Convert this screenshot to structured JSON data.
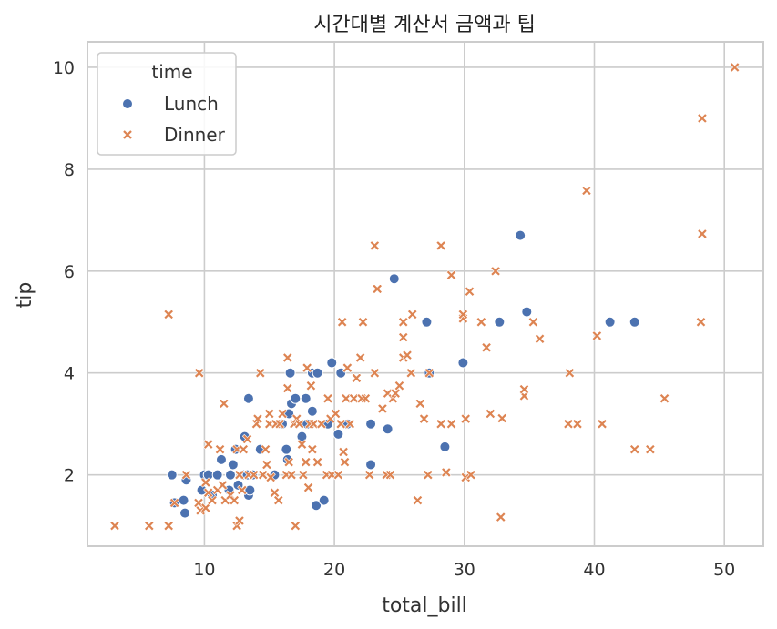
{
  "chart_data": {
    "type": "scatter",
    "title": "시간대별 계산서 금액과 팁",
    "xlabel": "total_bill",
    "ylabel": "tip",
    "xlim": [
      1,
      53
    ],
    "ylim": [
      0.6,
      10.5
    ],
    "xticks": [
      10,
      20,
      30,
      40,
      50
    ],
    "yticks": [
      2,
      4,
      6,
      8,
      10
    ],
    "grid": true,
    "legend": {
      "title": "time",
      "placement": "top-left"
    },
    "colors": {
      "Lunch": "#4c72b0",
      "Dinner": "#dd8452",
      "grid": "#cccccc",
      "axes": "#cccccc"
    },
    "series": [
      {
        "name": "Lunch",
        "marker": "circle",
        "points": [
          [
            7.5,
            2.0
          ],
          [
            7.7,
            1.45
          ],
          [
            8.4,
            1.5
          ],
          [
            8.5,
            1.25
          ],
          [
            8.6,
            1.9
          ],
          [
            9.8,
            1.7
          ],
          [
            10.0,
            2.0
          ],
          [
            10.3,
            2.0
          ],
          [
            10.6,
            1.6
          ],
          [
            11.0,
            2.0
          ],
          [
            11.3,
            2.3
          ],
          [
            11.9,
            1.7
          ],
          [
            12.0,
            2.0
          ],
          [
            12.2,
            2.2
          ],
          [
            12.4,
            2.5
          ],
          [
            12.6,
            1.8
          ],
          [
            13.0,
            2.0
          ],
          [
            13.1,
            2.75
          ],
          [
            13.3,
            2.0
          ],
          [
            13.4,
            3.5
          ],
          [
            13.4,
            1.6
          ],
          [
            13.5,
            1.7
          ],
          [
            13.7,
            2.0
          ],
          [
            14.3,
            2.5
          ],
          [
            15.4,
            2.0
          ],
          [
            16.0,
            3.0
          ],
          [
            16.3,
            2.5
          ],
          [
            16.4,
            2.3
          ],
          [
            16.5,
            3.2
          ],
          [
            16.6,
            4.0
          ],
          [
            16.7,
            3.4
          ],
          [
            17.0,
            3.5
          ],
          [
            17.5,
            2.75
          ],
          [
            17.8,
            3.5
          ],
          [
            17.9,
            3.0
          ],
          [
            18.3,
            4.0
          ],
          [
            18.3,
            3.25
          ],
          [
            18.6,
            1.4
          ],
          [
            18.7,
            4.0
          ],
          [
            19.2,
            1.5
          ],
          [
            19.5,
            3.0
          ],
          [
            19.8,
            4.2
          ],
          [
            20.3,
            2.8
          ],
          [
            20.5,
            4.0
          ],
          [
            20.9,
            3.0
          ],
          [
            21.0,
            3.0
          ],
          [
            22.8,
            3.0
          ],
          [
            22.8,
            2.2
          ],
          [
            24.1,
            2.9
          ],
          [
            24.6,
            5.85
          ],
          [
            27.1,
            5.0
          ],
          [
            27.3,
            4.0
          ],
          [
            28.5,
            2.55
          ],
          [
            29.9,
            4.2
          ],
          [
            32.7,
            5.0
          ],
          [
            34.3,
            6.7
          ],
          [
            34.8,
            5.2
          ],
          [
            41.2,
            5.0
          ],
          [
            43.1,
            5.0
          ]
        ]
      },
      {
        "name": "Dinner",
        "marker": "x",
        "points": [
          [
            3.1,
            1.0
          ],
          [
            5.75,
            1.0
          ],
          [
            7.25,
            1.0
          ],
          [
            7.25,
            5.15
          ],
          [
            7.7,
            1.45
          ],
          [
            8.6,
            2.0
          ],
          [
            9.55,
            1.45
          ],
          [
            9.6,
            4.0
          ],
          [
            9.7,
            1.3
          ],
          [
            10.1,
            1.35
          ],
          [
            10.1,
            1.85
          ],
          [
            10.3,
            1.65
          ],
          [
            10.3,
            2.6
          ],
          [
            10.6,
            1.5
          ],
          [
            11.0,
            1.7
          ],
          [
            11.2,
            2.5
          ],
          [
            11.4,
            1.8
          ],
          [
            11.5,
            3.4
          ],
          [
            11.6,
            1.5
          ],
          [
            12.0,
            1.6
          ],
          [
            12.3,
            1.5
          ],
          [
            12.5,
            1.0
          ],
          [
            12.5,
            2.5
          ],
          [
            12.7,
            1.1
          ],
          [
            12.7,
            2.0
          ],
          [
            12.9,
            1.7
          ],
          [
            13.0,
            2.5
          ],
          [
            13.3,
            2.7
          ],
          [
            13.4,
            2.0
          ],
          [
            13.8,
            2.0
          ],
          [
            14.0,
            3.0
          ],
          [
            14.1,
            3.1
          ],
          [
            14.3,
            4.0
          ],
          [
            14.5,
            2.0
          ],
          [
            14.7,
            2.5
          ],
          [
            14.8,
            2.2
          ],
          [
            15.0,
            3.0
          ],
          [
            15.0,
            3.2
          ],
          [
            15.1,
            1.95
          ],
          [
            15.4,
            1.65
          ],
          [
            15.5,
            3.0
          ],
          [
            15.7,
            1.5
          ],
          [
            15.8,
            3.0
          ],
          [
            16.0,
            3.2
          ],
          [
            16.3,
            2.0
          ],
          [
            16.4,
            3.7
          ],
          [
            16.4,
            4.3
          ],
          [
            16.5,
            2.25
          ],
          [
            16.7,
            2.0
          ],
          [
            16.9,
            3.0
          ],
          [
            17.0,
            1.0
          ],
          [
            17.1,
            3.1
          ],
          [
            17.3,
            3.0
          ],
          [
            17.5,
            2.6
          ],
          [
            17.6,
            2.0
          ],
          [
            17.8,
            2.25
          ],
          [
            17.9,
            4.1
          ],
          [
            18.0,
            1.75
          ],
          [
            18.1,
            3.0
          ],
          [
            18.2,
            3.75
          ],
          [
            18.3,
            2.5
          ],
          [
            18.4,
            3.0
          ],
          [
            18.7,
            2.25
          ],
          [
            19.0,
            3.0
          ],
          [
            19.4,
            2.0
          ],
          [
            19.5,
            3.5
          ],
          [
            19.7,
            3.1
          ],
          [
            19.8,
            2.0
          ],
          [
            20.1,
            3.2
          ],
          [
            20.3,
            2.0
          ],
          [
            20.5,
            3.0
          ],
          [
            20.6,
            5.0
          ],
          [
            20.7,
            2.45
          ],
          [
            20.8,
            2.25
          ],
          [
            20.9,
            3.5
          ],
          [
            21.0,
            4.1
          ],
          [
            21.2,
            3.0
          ],
          [
            21.5,
            3.5
          ],
          [
            21.7,
            3.9
          ],
          [
            22.0,
            4.3
          ],
          [
            22.1,
            3.5
          ],
          [
            22.2,
            5.0
          ],
          [
            22.4,
            3.5
          ],
          [
            22.7,
            2.0
          ],
          [
            23.1,
            4.0
          ],
          [
            23.1,
            6.5
          ],
          [
            23.3,
            5.65
          ],
          [
            23.7,
            3.3
          ],
          [
            24.0,
            2.0
          ],
          [
            24.1,
            3.6
          ],
          [
            24.3,
            2.0
          ],
          [
            24.5,
            3.5
          ],
          [
            24.7,
            3.6
          ],
          [
            25.0,
            3.75
          ],
          [
            25.3,
            4.3
          ],
          [
            25.3,
            5.0
          ],
          [
            25.3,
            4.7
          ],
          [
            25.6,
            4.35
          ],
          [
            25.9,
            4.0
          ],
          [
            26.0,
            5.15
          ],
          [
            26.4,
            1.5
          ],
          [
            26.6,
            3.4
          ],
          [
            26.9,
            3.1
          ],
          [
            27.2,
            2.0
          ],
          [
            27.3,
            4.0
          ],
          [
            28.2,
            6.5
          ],
          [
            28.2,
            3.0
          ],
          [
            28.6,
            2.05
          ],
          [
            29.0,
            3.0
          ],
          [
            29.0,
            5.92
          ],
          [
            29.9,
            5.07
          ],
          [
            29.9,
            5.15
          ],
          [
            30.1,
            1.95
          ],
          [
            30.1,
            3.1
          ],
          [
            30.4,
            5.6
          ],
          [
            30.5,
            2.0
          ],
          [
            31.3,
            5.0
          ],
          [
            31.7,
            4.5
          ],
          [
            32.0,
            3.2
          ],
          [
            32.4,
            6.0
          ],
          [
            32.8,
            1.17
          ],
          [
            32.9,
            3.11
          ],
          [
            34.6,
            3.55
          ],
          [
            34.6,
            3.68
          ],
          [
            35.3,
            5.0
          ],
          [
            35.8,
            4.67
          ],
          [
            38.0,
            3.0
          ],
          [
            38.1,
            4.0
          ],
          [
            38.7,
            3.0
          ],
          [
            39.4,
            7.58
          ],
          [
            40.2,
            4.73
          ],
          [
            40.6,
            3.0
          ],
          [
            43.1,
            2.5
          ],
          [
            44.3,
            2.5
          ],
          [
            45.4,
            3.5
          ],
          [
            48.2,
            5.0
          ],
          [
            48.3,
            6.73
          ],
          [
            48.3,
            9.0
          ],
          [
            50.8,
            10.0
          ]
        ]
      }
    ]
  }
}
